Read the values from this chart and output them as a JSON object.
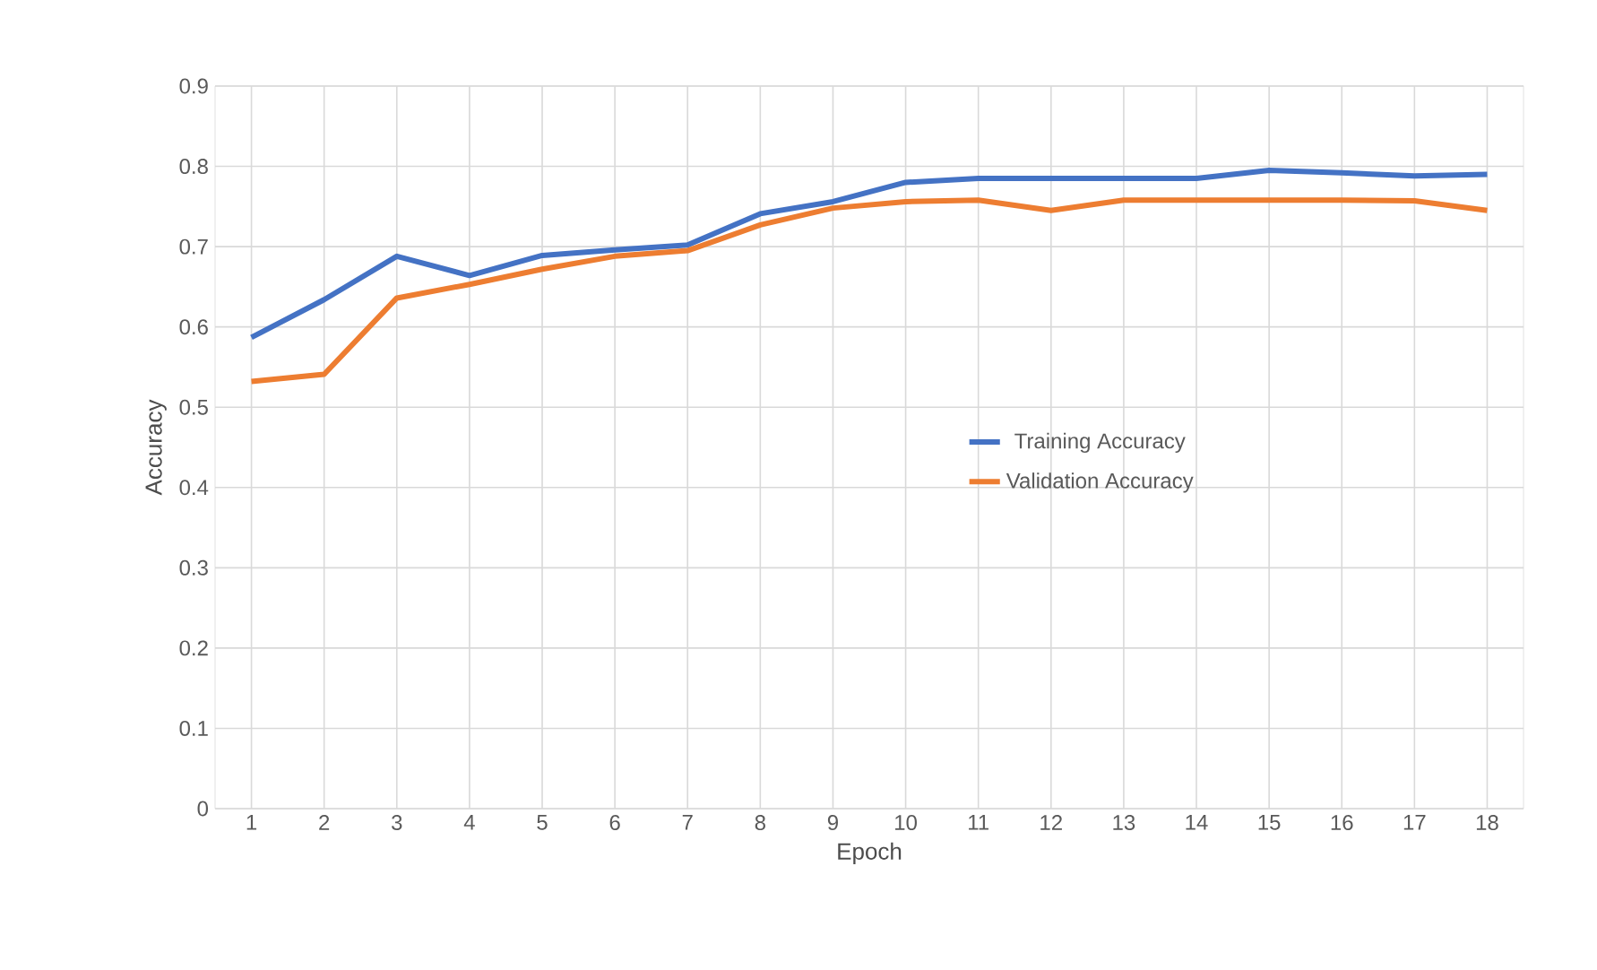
{
  "chart_data": {
    "type": "line",
    "xlabel": "Epoch",
    "ylabel": "Accuracy",
    "categories": [
      "1",
      "2",
      "3",
      "4",
      "5",
      "6",
      "7",
      "8",
      "9",
      "10",
      "11",
      "12",
      "13",
      "14",
      "15",
      "16",
      "17",
      "18"
    ],
    "series": [
      {
        "name": "Training Accuracy",
        "color": "#4472c4",
        "values": [
          0.587,
          0.634,
          0.688,
          0.664,
          0.689,
          0.696,
          0.702,
          0.741,
          0.756,
          0.78,
          0.785,
          0.785,
          0.785,
          0.785,
          0.795,
          0.792,
          0.788,
          0.79
        ]
      },
      {
        "name": "Validation Accuracy",
        "color": "#ed7d31",
        "values": [
          0.532,
          0.541,
          0.636,
          0.653,
          0.672,
          0.688,
          0.695,
          0.727,
          0.748,
          0.756,
          0.758,
          0.745,
          0.758,
          0.758,
          0.758,
          0.758,
          0.757,
          0.745
        ]
      }
    ],
    "ylim": [
      0,
      0.9
    ],
    "yticks": [
      0,
      0.1,
      0.2,
      0.3,
      0.4,
      0.5,
      0.6,
      0.7,
      0.8,
      0.9
    ],
    "grid": true,
    "legend": "right",
    "marker": "none",
    "line_style": "solid"
  }
}
